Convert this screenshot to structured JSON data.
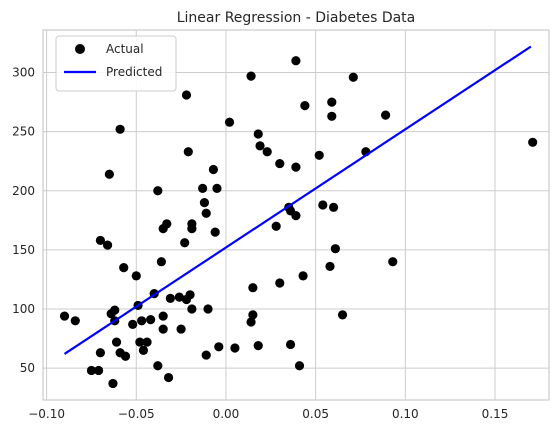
{
  "chart_data": {
    "type": "scatter",
    "title": "Linear Regression - Diabetes Data",
    "xlabel": "",
    "ylabel": "",
    "xlim": [
      -0.102,
      0.184
    ],
    "ylim": [
      23,
      336
    ],
    "x_ticks": [
      -0.1,
      -0.05,
      0.0,
      0.05,
      0.1,
      0.15
    ],
    "x_tick_labels": [
      "−0.10",
      "−0.05",
      "0.00",
      "0.05",
      "0.10",
      "0.15"
    ],
    "y_ticks": [
      50,
      100,
      150,
      200,
      250,
      300
    ],
    "y_tick_labels": [
      "50",
      "100",
      "150",
      "200",
      "250",
      "300"
    ],
    "grid": true,
    "legend_position": "top-left",
    "series": [
      {
        "name": "Actual",
        "kind": "scatter",
        "color": "#000000",
        "points": [
          [
            -0.09,
            94
          ],
          [
            -0.084,
            90
          ],
          [
            -0.075,
            48
          ],
          [
            -0.071,
            48
          ],
          [
            -0.07,
            63
          ],
          [
            -0.07,
            158
          ],
          [
            -0.066,
            154
          ],
          [
            -0.065,
            214
          ],
          [
            -0.064,
            96
          ],
          [
            -0.063,
            37
          ],
          [
            -0.062,
            99
          ],
          [
            -0.062,
            90
          ],
          [
            -0.061,
            72
          ],
          [
            -0.059,
            252
          ],
          [
            -0.059,
            63
          ],
          [
            -0.057,
            135
          ],
          [
            -0.056,
            60
          ],
          [
            -0.052,
            87
          ],
          [
            -0.05,
            128
          ],
          [
            -0.049,
            103
          ],
          [
            -0.048,
            72
          ],
          [
            -0.047,
            90
          ],
          [
            -0.046,
            65
          ],
          [
            -0.044,
            72
          ],
          [
            -0.042,
            91
          ],
          [
            -0.04,
            113
          ],
          [
            -0.038,
            200
          ],
          [
            -0.038,
            52
          ],
          [
            -0.036,
            140
          ],
          [
            -0.035,
            168
          ],
          [
            -0.035,
            94
          ],
          [
            -0.035,
            83
          ],
          [
            -0.033,
            172
          ],
          [
            -0.032,
            42
          ],
          [
            -0.031,
            109
          ],
          [
            -0.026,
            110
          ],
          [
            -0.025,
            83
          ],
          [
            -0.023,
            156
          ],
          [
            -0.022,
            281
          ],
          [
            -0.022,
            108
          ],
          [
            -0.021,
            233
          ],
          [
            -0.02,
            112
          ],
          [
            -0.019,
            168
          ],
          [
            -0.019,
            172
          ],
          [
            -0.019,
            100
          ],
          [
            -0.013,
            202
          ],
          [
            -0.012,
            190
          ],
          [
            -0.011,
            181
          ],
          [
            -0.011,
            61
          ],
          [
            -0.01,
            100
          ],
          [
            -0.007,
            218
          ],
          [
            -0.006,
            165
          ],
          [
            -0.005,
            202
          ],
          [
            -0.004,
            68
          ],
          [
            0.002,
            258
          ],
          [
            0.005,
            67
          ],
          [
            0.014,
            297
          ],
          [
            0.014,
            89
          ],
          [
            0.015,
            118
          ],
          [
            0.015,
            95
          ],
          [
            0.018,
            69
          ],
          [
            0.018,
            248
          ],
          [
            0.019,
            238
          ],
          [
            0.023,
            233
          ],
          [
            0.028,
            170
          ],
          [
            0.03,
            223
          ],
          [
            0.03,
            122
          ],
          [
            0.035,
            186
          ],
          [
            0.036,
            70
          ],
          [
            0.036,
            183
          ],
          [
            0.039,
            310
          ],
          [
            0.039,
            220
          ],
          [
            0.039,
            179
          ],
          [
            0.041,
            52
          ],
          [
            0.043,
            128
          ],
          [
            0.044,
            272
          ],
          [
            0.052,
            230
          ],
          [
            0.054,
            188
          ],
          [
            0.058,
            136
          ],
          [
            0.059,
            275
          ],
          [
            0.059,
            263
          ],
          [
            0.06,
            186
          ],
          [
            0.061,
            151
          ],
          [
            0.065,
            95
          ],
          [
            0.071,
            296
          ],
          [
            0.078,
            233
          ],
          [
            0.089,
            264
          ],
          [
            0.093,
            140
          ],
          [
            0.171,
            241
          ]
        ]
      },
      {
        "name": "Predicted",
        "kind": "line",
        "color": "#0000ff",
        "points": [
          [
            -0.09,
            62
          ],
          [
            0.17,
            322
          ]
        ]
      }
    ]
  }
}
